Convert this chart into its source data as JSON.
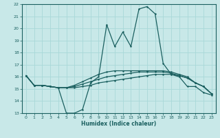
{
  "xlabel": "Humidex (Indice chaleur)",
  "bg_color": "#c8e8e8",
  "grid_color": "#a8d8d8",
  "line_color": "#1a5f5f",
  "xlim": [
    -0.5,
    23.5
  ],
  "ylim": [
    13,
    22
  ],
  "xticks": [
    0,
    1,
    2,
    3,
    4,
    5,
    6,
    7,
    8,
    9,
    10,
    11,
    12,
    13,
    14,
    15,
    16,
    17,
    18,
    19,
    20,
    21,
    22,
    23
  ],
  "yticks": [
    13,
    14,
    15,
    16,
    17,
    18,
    19,
    20,
    21,
    22
  ],
  "series": [
    [
      16.1,
      15.3,
      15.3,
      15.2,
      15.1,
      13.0,
      13.0,
      13.3,
      15.5,
      16.0,
      20.3,
      18.5,
      19.7,
      18.5,
      21.6,
      21.8,
      21.2,
      17.1,
      16.2,
      16.0,
      15.2,
      15.2,
      14.7,
      14.5
    ],
    [
      16.1,
      15.3,
      15.3,
      15.2,
      15.1,
      15.1,
      15.1,
      15.2,
      15.3,
      15.5,
      15.6,
      15.7,
      15.8,
      15.9,
      16.0,
      16.1,
      16.2,
      16.2,
      16.2,
      16.1,
      15.9,
      15.5,
      15.2,
      14.6
    ],
    [
      16.1,
      15.3,
      15.3,
      15.2,
      15.1,
      15.1,
      15.2,
      15.4,
      15.6,
      15.8,
      16.0,
      16.1,
      16.2,
      16.3,
      16.4,
      16.4,
      16.4,
      16.4,
      16.3,
      16.1,
      15.9,
      15.5,
      15.2,
      14.6
    ],
    [
      16.1,
      15.3,
      15.3,
      15.2,
      15.1,
      15.1,
      15.3,
      15.6,
      15.9,
      16.2,
      16.4,
      16.5,
      16.5,
      16.5,
      16.5,
      16.5,
      16.5,
      16.5,
      16.4,
      16.2,
      16.0,
      15.5,
      15.2,
      14.6
    ]
  ]
}
